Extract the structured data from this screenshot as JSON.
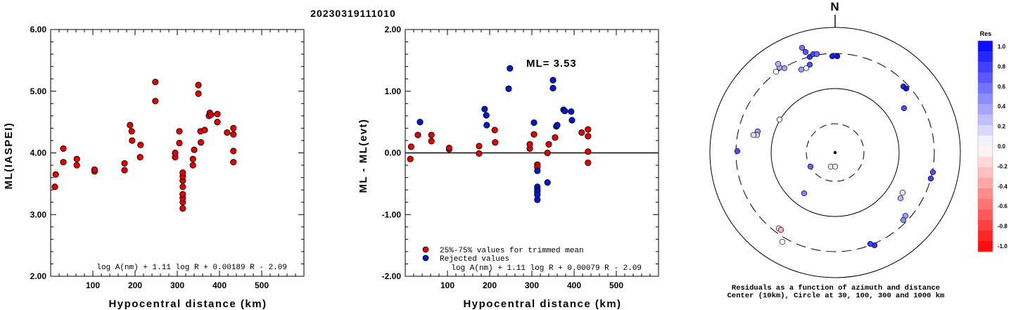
{
  "event_title": "20230319111010",
  "colors": {
    "accepted": "#dd0000",
    "rejected": "#0018cc"
  },
  "chart_data": [
    {
      "type": "scatter",
      "ylabel": "ML(IASPEI)",
      "xlabel": "Hypocentral distance (km)",
      "xticks": [
        "100",
        "200",
        "300",
        "400",
        "500"
      ],
      "yticks": [
        "2.00",
        "3.00",
        "4.00",
        "5.00",
        "6.00"
      ],
      "xlim": [
        0,
        600
      ],
      "ylim": [
        2.0,
        6.0
      ],
      "formula": "log A(nm) + 1.11 log R + 0.00189 R - 2.09",
      "points": [
        [
          10,
          3.45
        ],
        [
          12,
          3.65
        ],
        [
          30,
          3.85
        ],
        [
          30,
          4.07
        ],
        [
          62,
          3.8
        ],
        [
          62,
          3.9
        ],
        [
          104,
          3.7
        ],
        [
          104,
          3.73
        ],
        [
          175,
          3.72
        ],
        [
          175,
          3.83
        ],
        [
          188,
          4.45
        ],
        [
          192,
          4.35
        ],
        [
          193,
          4.2
        ],
        [
          212,
          3.93
        ],
        [
          213,
          4.13
        ],
        [
          248,
          4.84
        ],
        [
          248,
          5.15
        ],
        [
          295,
          3.93
        ],
        [
          295,
          4.0
        ],
        [
          305,
          4.16
        ],
        [
          305,
          4.35
        ],
        [
          313,
          3.1
        ],
        [
          313,
          3.2
        ],
        [
          313,
          3.27
        ],
        [
          313,
          3.33
        ],
        [
          313,
          3.45
        ],
        [
          313,
          3.55
        ],
        [
          313,
          3.62
        ],
        [
          313,
          3.68
        ],
        [
          337,
          3.8
        ],
        [
          337,
          3.9
        ],
        [
          340,
          4.05
        ],
        [
          350,
          4.96
        ],
        [
          350,
          5.1
        ],
        [
          355,
          4.35
        ],
        [
          356,
          4.17
        ],
        [
          365,
          4.37
        ],
        [
          375,
          4.6
        ],
        [
          377,
          4.65
        ],
        [
          380,
          4.62
        ],
        [
          395,
          4.5
        ],
        [
          395,
          4.63
        ],
        [
          418,
          4.33
        ],
        [
          433,
          4.03
        ],
        [
          433,
          4.4
        ],
        [
          433,
          4.3
        ],
        [
          433,
          3.85
        ]
      ]
    },
    {
      "type": "scatter",
      "ylabel": "ML - ML(evt)",
      "xlabel": "Hypocentral distance (km)",
      "xticks": [
        "100",
        "200",
        "300",
        "400",
        "500"
      ],
      "yticks": [
        "-2.00",
        "-1.00",
        "0.00",
        "1.00",
        "2.00"
      ],
      "xlim": [
        0,
        600
      ],
      "ylim": [
        -2.0,
        2.0
      ],
      "ml_label": "ML= 3.53",
      "formula": "log A(nm) + 1.11 log R + 0.00079 R - 2.09",
      "legend": [
        {
          "label": "25%-75% values for trimmed mean",
          "color": "#dd0000"
        },
        {
          "label": "Rejected values",
          "color": "#0018cc"
        }
      ],
      "accepted": [
        [
          12,
          -0.1
        ],
        [
          14,
          0.1
        ],
        [
          30,
          0.29
        ],
        [
          62,
          0.29
        ],
        [
          62,
          0.19
        ],
        [
          104,
          0.06
        ],
        [
          104,
          0.08
        ],
        [
          175,
          -0.01
        ],
        [
          175,
          0.11
        ],
        [
          212,
          0.37
        ],
        [
          213,
          0.17
        ],
        [
          295,
          0.07
        ],
        [
          295,
          0.14
        ],
        [
          305,
          0.3
        ],
        [
          313,
          -0.19
        ],
        [
          313,
          -0.23
        ],
        [
          337,
          0.0
        ],
        [
          340,
          0.14
        ],
        [
          355,
          0.25
        ],
        [
          418,
          0.33
        ],
        [
          433,
          0.38
        ],
        [
          433,
          0.27
        ],
        [
          433,
          0.02
        ],
        [
          433,
          -0.16
        ]
      ],
      "rejected": [
        [
          35,
          0.5
        ],
        [
          188,
          0.71
        ],
        [
          192,
          0.61
        ],
        [
          193,
          0.45
        ],
        [
          245,
          1.04
        ],
        [
          248,
          1.37
        ],
        [
          305,
          0.49
        ],
        [
          313,
          -0.29
        ],
        [
          313,
          -0.55
        ],
        [
          313,
          -0.6
        ],
        [
          313,
          -0.63
        ],
        [
          313,
          -0.68
        ],
        [
          313,
          -0.76
        ],
        [
          337,
          -0.48
        ],
        [
          350,
          1.18
        ],
        [
          350,
          1.05
        ],
        [
          358,
          0.43
        ],
        [
          360,
          0.45
        ],
        [
          375,
          0.7
        ],
        [
          378,
          0.68
        ],
        [
          393,
          0.67
        ],
        [
          395,
          0.53
        ]
      ]
    },
    {
      "type": "polar",
      "north_label": "N",
      "caption": [
        "Residuals as a function of azimuth and distance",
        "Center (10km), Circle at 30, 100, 300 and 1000 km"
      ],
      "colorbar_title": "Res",
      "colorbar_ticks": [
        "1.0",
        "0.8",
        "0.6",
        "0.4",
        "0.2",
        "0.0",
        "-0.2",
        "-0.4",
        "-0.6",
        "-0.8",
        "-1.0"
      ],
      "stations": [
        [
          -47,
          -149,
          0.55
        ],
        [
          -42,
          -143,
          0.65
        ],
        [
          -36,
          -136,
          0.8
        ],
        [
          -31,
          -140,
          0.7
        ],
        [
          -26,
          -140,
          0.6
        ],
        [
          -4,
          -137,
          0.9
        ],
        [
          3,
          -137,
          0.95
        ],
        [
          -79,
          -121,
          0.35
        ],
        [
          -84,
          -115,
          0.0
        ],
        [
          -72,
          -120,
          0.35
        ],
        [
          -81,
          -126,
          0.3
        ],
        [
          -48,
          -118,
          0.4
        ],
        [
          -41,
          -120,
          0.05
        ],
        [
          -36,
          -125,
          0.7
        ],
        [
          -110,
          -30,
          0.4
        ],
        [
          -111,
          -25,
          0.2
        ],
        [
          -116,
          -25,
          0.15
        ],
        [
          -139,
          -2,
          0.7
        ],
        [
          -79,
          -47,
          0.05
        ],
        [
          97,
          -94,
          0.85
        ],
        [
          101,
          -91,
          0.95
        ],
        [
          98,
          -63,
          0.7
        ],
        [
          139,
          28,
          0.7
        ],
        [
          136,
          37,
          0.75
        ],
        [
          96,
          57,
          0.1
        ],
        [
          93,
          65,
          0.3
        ],
        [
          100,
          90,
          0.4
        ],
        [
          97,
          96,
          0.45
        ],
        [
          56,
          132,
          0.8
        ],
        [
          50,
          130,
          0.75
        ],
        [
          -80,
          108,
          -0.1
        ],
        [
          -77,
          110,
          -0.3
        ],
        [
          -75,
          127,
          0.0
        ],
        [
          -44,
          58,
          0.5
        ],
        [
          -35,
          20,
          0.6
        ],
        [
          -6,
          20,
          0.05
        ],
        [
          0,
          20,
          -0.05
        ]
      ]
    }
  ]
}
